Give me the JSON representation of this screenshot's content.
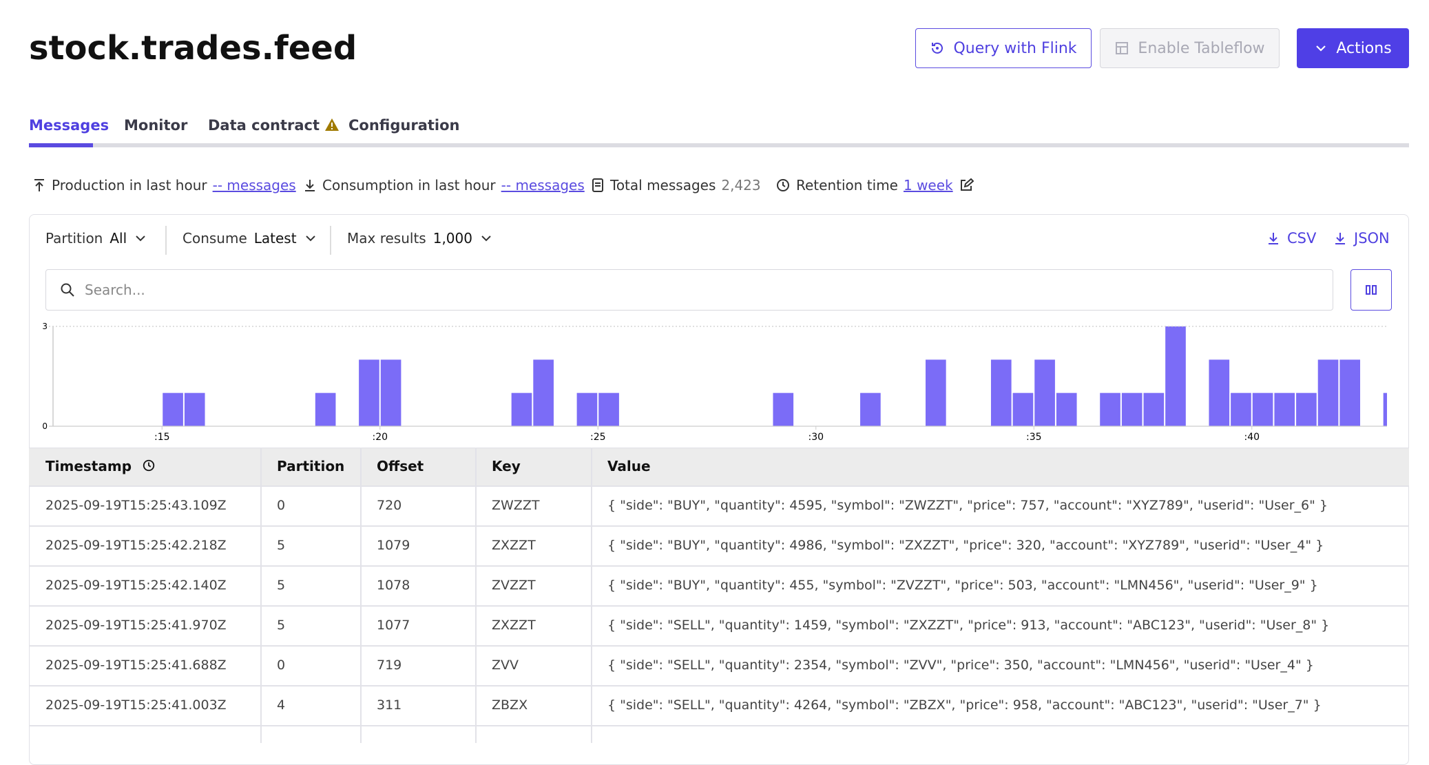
{
  "header": {
    "title": "stock.trades.feed",
    "buttons": [
      "Query with Flink",
      "Enable Tableflow",
      "Actions"
    ]
  },
  "tabs": [
    "Messages",
    "Monitor",
    "Data contract",
    "Configuration"
  ],
  "stats": [
    {
      "label": "Production in last hour",
      "value": "-- messages"
    },
    {
      "label": "Consumption in last hour",
      "value": "-- messages"
    },
    {
      "label": "Total messages",
      "value": "2,423"
    },
    {
      "label": "Retention time",
      "value": "1 week"
    }
  ],
  "toolbar": {
    "filters": [
      {
        "label": "Partition",
        "value": "All"
      },
      {
        "label": "Consume",
        "value": "Latest"
      },
      {
        "label": "Max results",
        "value": "1,000"
      }
    ],
    "downloads": [
      "CSV",
      "JSON"
    ],
    "search_placeholder": "Search..."
  },
  "chart_data": {
    "type": "histogram",
    "color": "#7b6cf7",
    "bins": [
      15,
      15.5,
      16,
      16.5,
      17,
      17.5,
      18,
      18.5,
      19,
      19.5,
      20,
      20.5,
      21,
      21.5,
      22,
      22.5,
      23,
      23.5,
      24,
      24.5,
      25,
      25.5,
      26,
      26.5,
      27,
      27.5,
      28,
      28.5,
      29,
      29.5,
      30,
      30.5,
      31,
      31.5,
      32,
      32.5,
      33,
      33.5,
      34,
      34.5,
      35,
      35.5,
      36,
      36.5,
      37,
      37.5,
      38,
      38.5,
      39,
      39.5,
      40,
      40.5,
      41,
      41.5,
      42,
      42.5,
      43,
      43.5
    ],
    "values": [
      1,
      1,
      0,
      0,
      0,
      0,
      0,
      1,
      0,
      2,
      2,
      0,
      0,
      0,
      0,
      0,
      1,
      2,
      0,
      1,
      1,
      0,
      0,
      0,
      0,
      0,
      0,
      0,
      1,
      0,
      0,
      0,
      1,
      0,
      0,
      2,
      0,
      0,
      2,
      1,
      2,
      1,
      0,
      1,
      1,
      1,
      3,
      0,
      2,
      1,
      1,
      1,
      1,
      2,
      2,
      0,
      1
    ],
    "xlim": [
      12.5,
      43.1
    ],
    "xticks": [
      {
        "value": 15,
        "label": ":15"
      },
      {
        "value": 20,
        "label": ":20"
      },
      {
        "value": 25,
        "label": ":25"
      },
      {
        "value": 30,
        "label": ":30"
      },
      {
        "value": 35,
        "label": ":35"
      },
      {
        "value": 40,
        "label": ":40"
      }
    ],
    "ylim": [
      0,
      3
    ],
    "yticks": [
      0,
      3
    ]
  },
  "table": {
    "columns": [
      "Timestamp",
      "Partition",
      "Offset",
      "Key",
      "Value"
    ],
    "rows": [
      [
        "2025-09-19T15:25:43.109Z",
        "0",
        "720",
        "ZWZZT",
        "{ \"side\": \"BUY\", \"quantity\": 4595, \"symbol\": \"ZWZZT\", \"price\": 757, \"account\": \"XYZ789\", \"userid\": \"User_6\" }"
      ],
      [
        "2025-09-19T15:25:42.218Z",
        "5",
        "1079",
        "ZXZZT",
        "{ \"side\": \"BUY\", \"quantity\": 4986, \"symbol\": \"ZXZZT\", \"price\": 320, \"account\": \"XYZ789\", \"userid\": \"User_4\" }"
      ],
      [
        "2025-09-19T15:25:42.140Z",
        "5",
        "1078",
        "ZVZZT",
        "{ \"side\": \"BUY\", \"quantity\": 455, \"symbol\": \"ZVZZT\", \"price\": 503, \"account\": \"LMN456\", \"userid\": \"User_9\" }"
      ],
      [
        "2025-09-19T15:25:41.970Z",
        "5",
        "1077",
        "ZXZZT",
        "{ \"side\": \"SELL\", \"quantity\": 1459, \"symbol\": \"ZXZZT\", \"price\": 913, \"account\": \"ABC123\", \"userid\": \"User_8\" }"
      ],
      [
        "2025-09-19T15:25:41.688Z",
        "0",
        "719",
        "ZVV",
        "{ \"side\": \"SELL\", \"quantity\": 2354, \"symbol\": \"ZVV\", \"price\": 350, \"account\": \"LMN456\", \"userid\": \"User_4\" }"
      ],
      [
        "2025-09-19T15:25:41.003Z",
        "4",
        "311",
        "ZBZX",
        "{ \"side\": \"SELL\", \"quantity\": 4264, \"symbol\": \"ZBZX\", \"price\": 958, \"account\": \"ABC123\", \"userid\": \"User_7\" }"
      ]
    ]
  }
}
